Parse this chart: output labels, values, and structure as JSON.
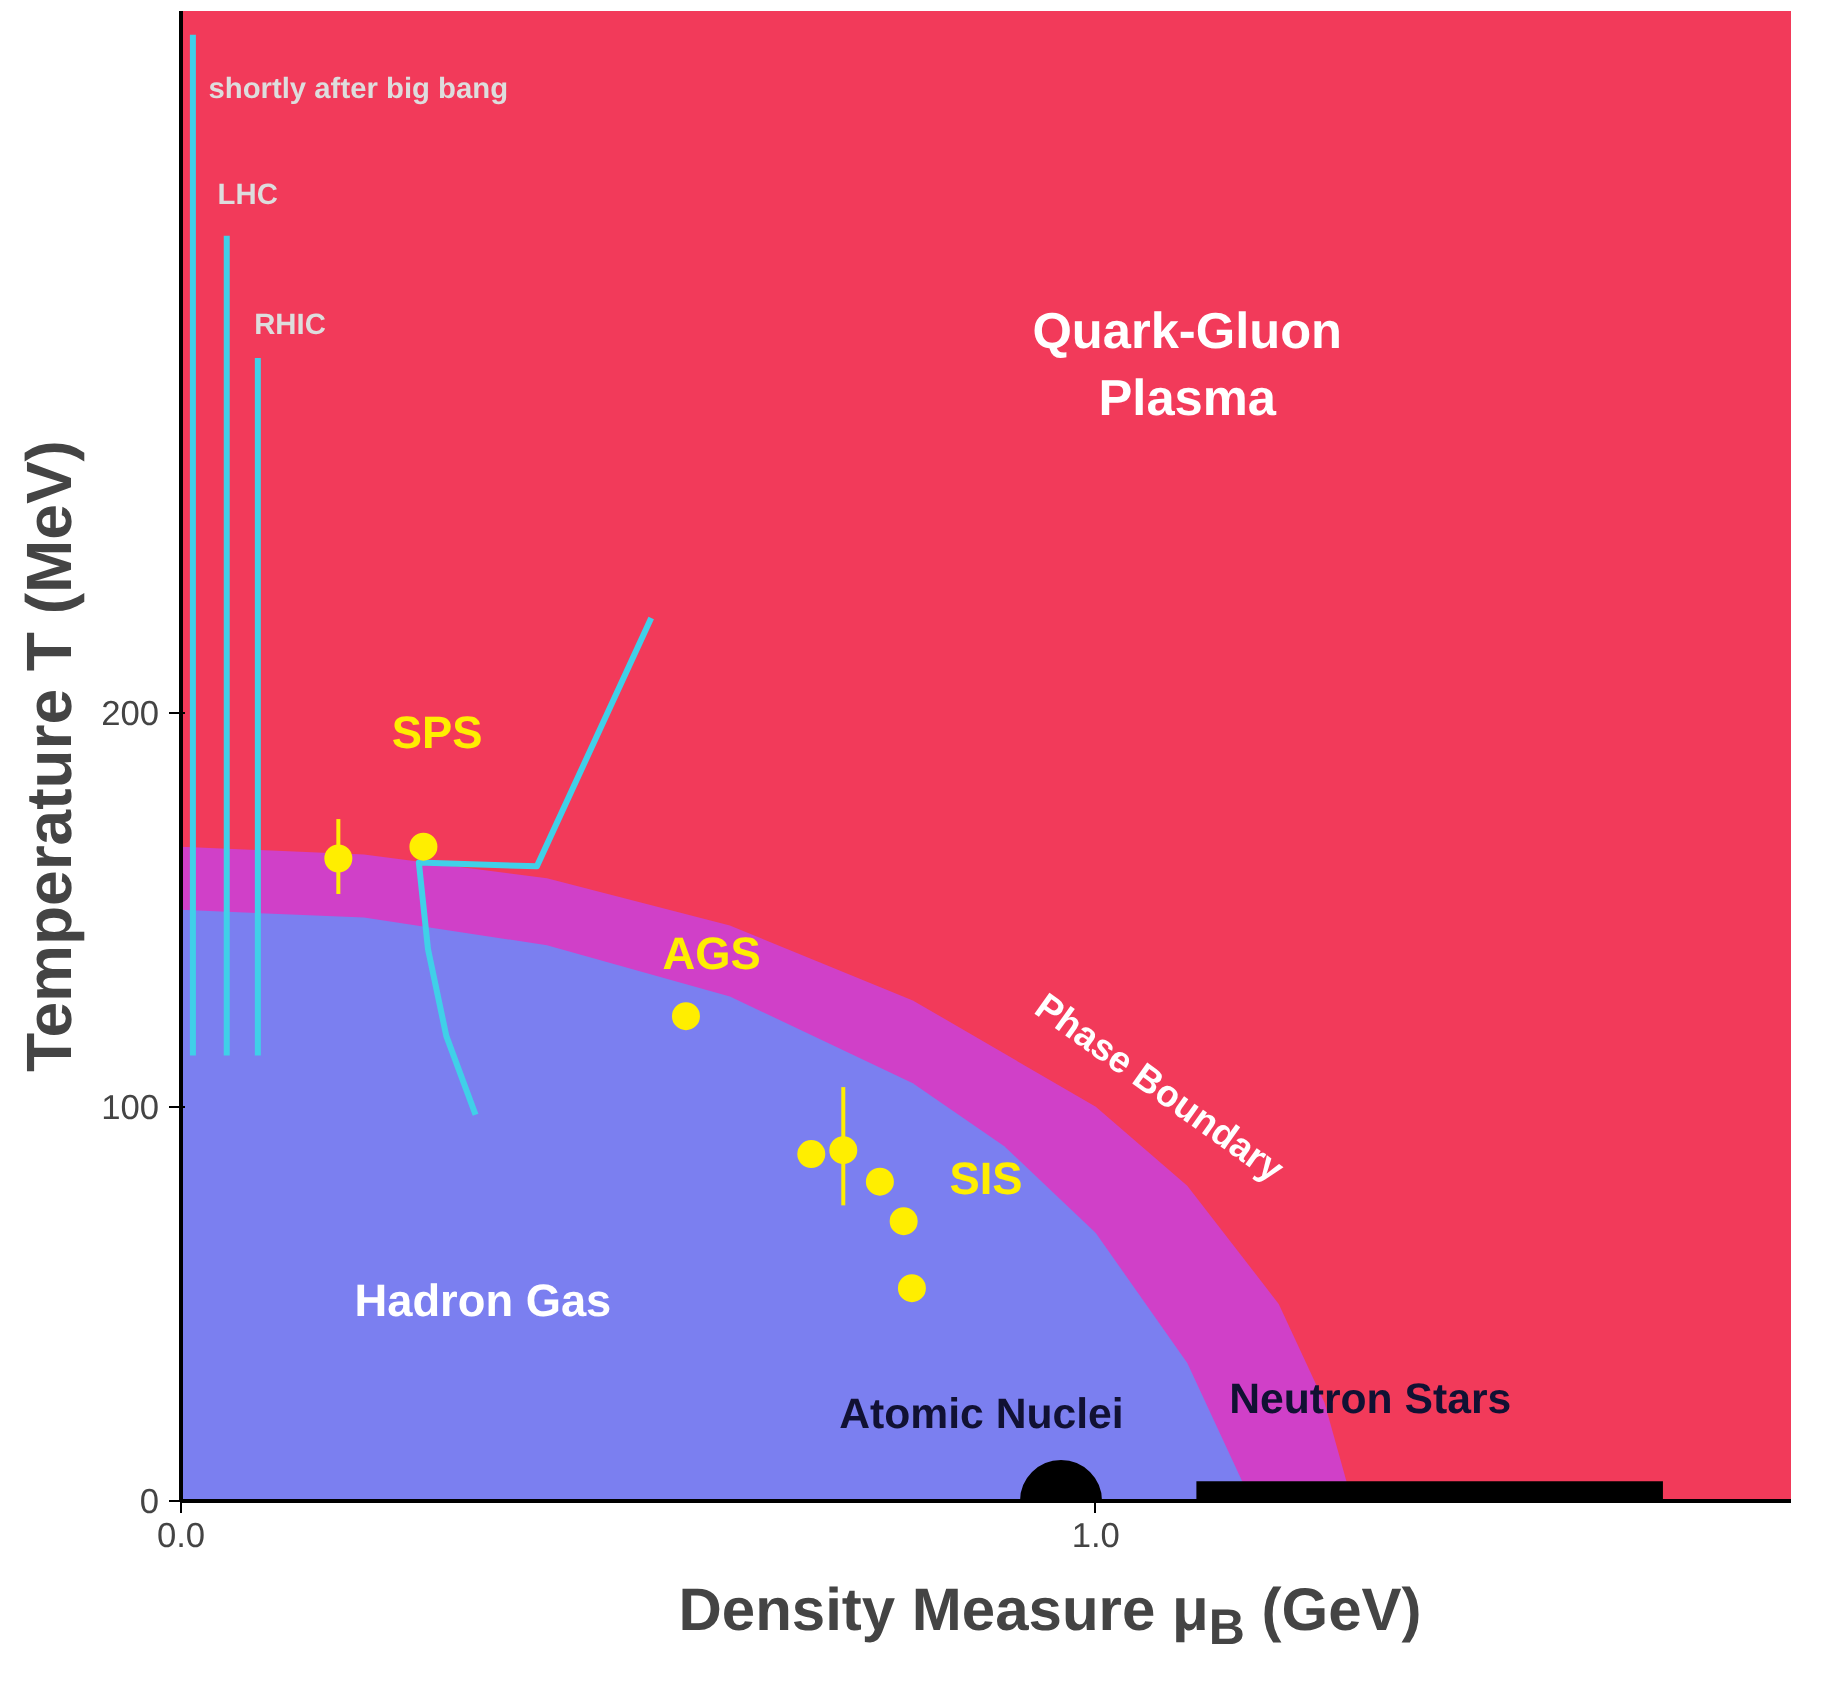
{
  "chart_data": {
    "type": "scatter",
    "xlabel": "Density Measure μ$_{B}$ (GeV)",
    "ylabel": "Temperature T (MeV)",
    "xlim": [
      0,
      1.76
    ],
    "ylim": [
      0,
      378
    ],
    "xticks": [
      {
        "value": 0,
        "label": "0.0"
      },
      {
        "value": 1.0,
        "label": "1.0"
      }
    ],
    "yticks": [
      0,
      100,
      200
    ],
    "grid": false,
    "series": [
      {
        "type": "area",
        "color": "#d040c8",
        "x": [
          0,
          0.2,
          0.4,
          0.6,
          0.8,
          1.0,
          1.1,
          1.2,
          1.25,
          1.28
        ],
        "values": [
          166,
          164,
          158,
          146,
          127,
          100,
          80,
          50,
          25,
          0
        ]
      },
      {
        "type": "area",
        "color": "#7b7ff0",
        "x": [
          0,
          0.2,
          0.4,
          0.6,
          0.8,
          0.9,
          1.0,
          1.1,
          1.15,
          1.17
        ],
        "values": [
          150,
          148,
          141,
          128,
          106,
          90,
          68,
          35,
          10,
          0
        ]
      },
      {
        "type": "area",
        "color": "#000000",
        "x": [
          1.11,
          1.62
        ],
        "values": [
          5,
          5
        ]
      },
      {
        "type": "line",
        "color": "#40d0e8",
        "x": [
          0.013,
          0.013
        ],
        "values": [
          372,
          113
        ]
      },
      {
        "type": "line",
        "color": "#40d0e8",
        "x": [
          0.05,
          0.05
        ],
        "values": [
          321,
          113
        ]
      },
      {
        "type": "line",
        "color": "#40d0e8",
        "x": [
          0.084,
          0.084
        ],
        "values": [
          290,
          113
        ]
      },
      {
        "type": "line",
        "color": "#40d0e8",
        "x": [
          0.514,
          0.389,
          0.26,
          0.27,
          0.29,
          0.322
        ],
        "values": [
          224,
          161,
          162,
          140,
          118,
          98
        ]
      },
      {
        "color": "#ffee00",
        "x": [
          0.172,
          0.265,
          0.552,
          0.689,
          0.724,
          0.764,
          0.79,
          0.799
        ],
        "values": [
          163,
          166,
          123,
          88,
          89,
          81,
          71,
          54
        ],
        "errors": [
          [
            154,
            173
          ],
          null,
          null,
          null,
          [
            75,
            105
          ],
          null,
          null,
          null
        ]
      },
      {
        "type": "bubble",
        "color": "#000000",
        "x": [
          0.962
        ],
        "values": [
          0
        ],
        "sizes": [
          1
        ]
      }
    ],
    "annotations": [
      "shortly after big bang",
      "LHC",
      "RHIC",
      "Quark-Gluon\nPlasma",
      "SPS",
      "AGS",
      "SIS",
      "Phase Boundary",
      "Hadron Gas",
      "Atomic Nuclei",
      "Neutron Stars"
    ]
  }
}
